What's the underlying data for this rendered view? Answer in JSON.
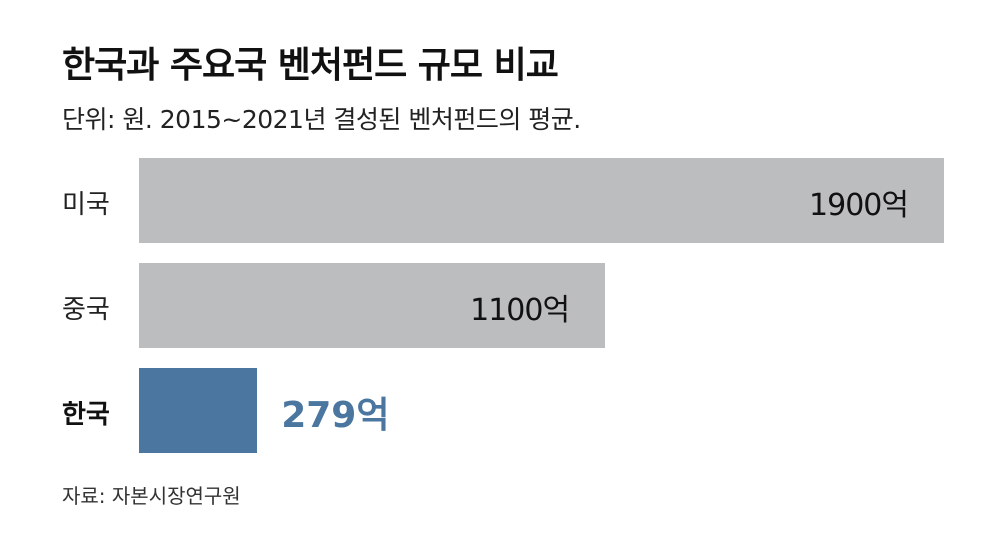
{
  "chart_data": {
    "type": "bar",
    "orientation": "horizontal",
    "title": "한국과 주요국 벤처펀드 규모 비교",
    "subtitle": "단위: 원. 2015~2021년 결성된 벤처펀드의 평균.",
    "categories": [
      "미국",
      "중국",
      "한국"
    ],
    "values": [
      1900,
      1100,
      279
    ],
    "data_labels": [
      "1900억",
      "1100억",
      "279억"
    ],
    "xlim": [
      0,
      1900
    ],
    "grid": false,
    "colors": {
      "default": "#bcbdbf",
      "highlight": "#4a76a0"
    },
    "highlight_index": 2,
    "source": "자료: 자본시장연구원"
  }
}
